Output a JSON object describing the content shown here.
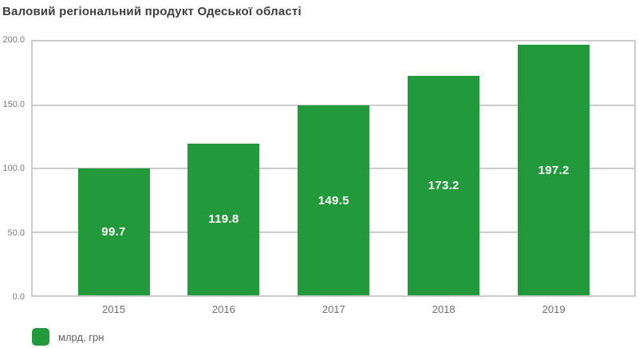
{
  "title": "Валовий регіональний продукт Одеської області",
  "legend": {
    "label": "млрд, грн"
  },
  "colors": {
    "bar": "#22993B",
    "grid": "#cbcbcb",
    "title_text": "#3d3d3d",
    "y_tick_text": "#7a7a7a",
    "x_tick_text": "#6e6e6e",
    "bar_label_text": "#ffffff",
    "legend_text": "#5f5f5f",
    "background": "#ffffff"
  },
  "chart_data": {
    "type": "bar",
    "title": "Валовий регіональний продукт Одеської області",
    "categories": [
      "2015",
      "2016",
      "2017",
      "2018",
      "2019"
    ],
    "values": [
      99.7,
      119.8,
      149.5,
      173.2,
      197.2
    ],
    "bar_value_labels": [
      "99.7",
      "119.8",
      "149.5",
      "173.2",
      "197.2"
    ],
    "series_label": "млрд, грн",
    "xlabel": "",
    "ylabel": "",
    "ylim": [
      0,
      200
    ],
    "yticks": [
      0,
      50,
      100,
      150,
      200
    ],
    "ytick_labels": [
      "0.0",
      "50.0",
      "100.0",
      "150.0",
      "200.0"
    ],
    "grid": true,
    "legend_position": "bottom-left",
    "value_label_position": "center-of-bar"
  }
}
